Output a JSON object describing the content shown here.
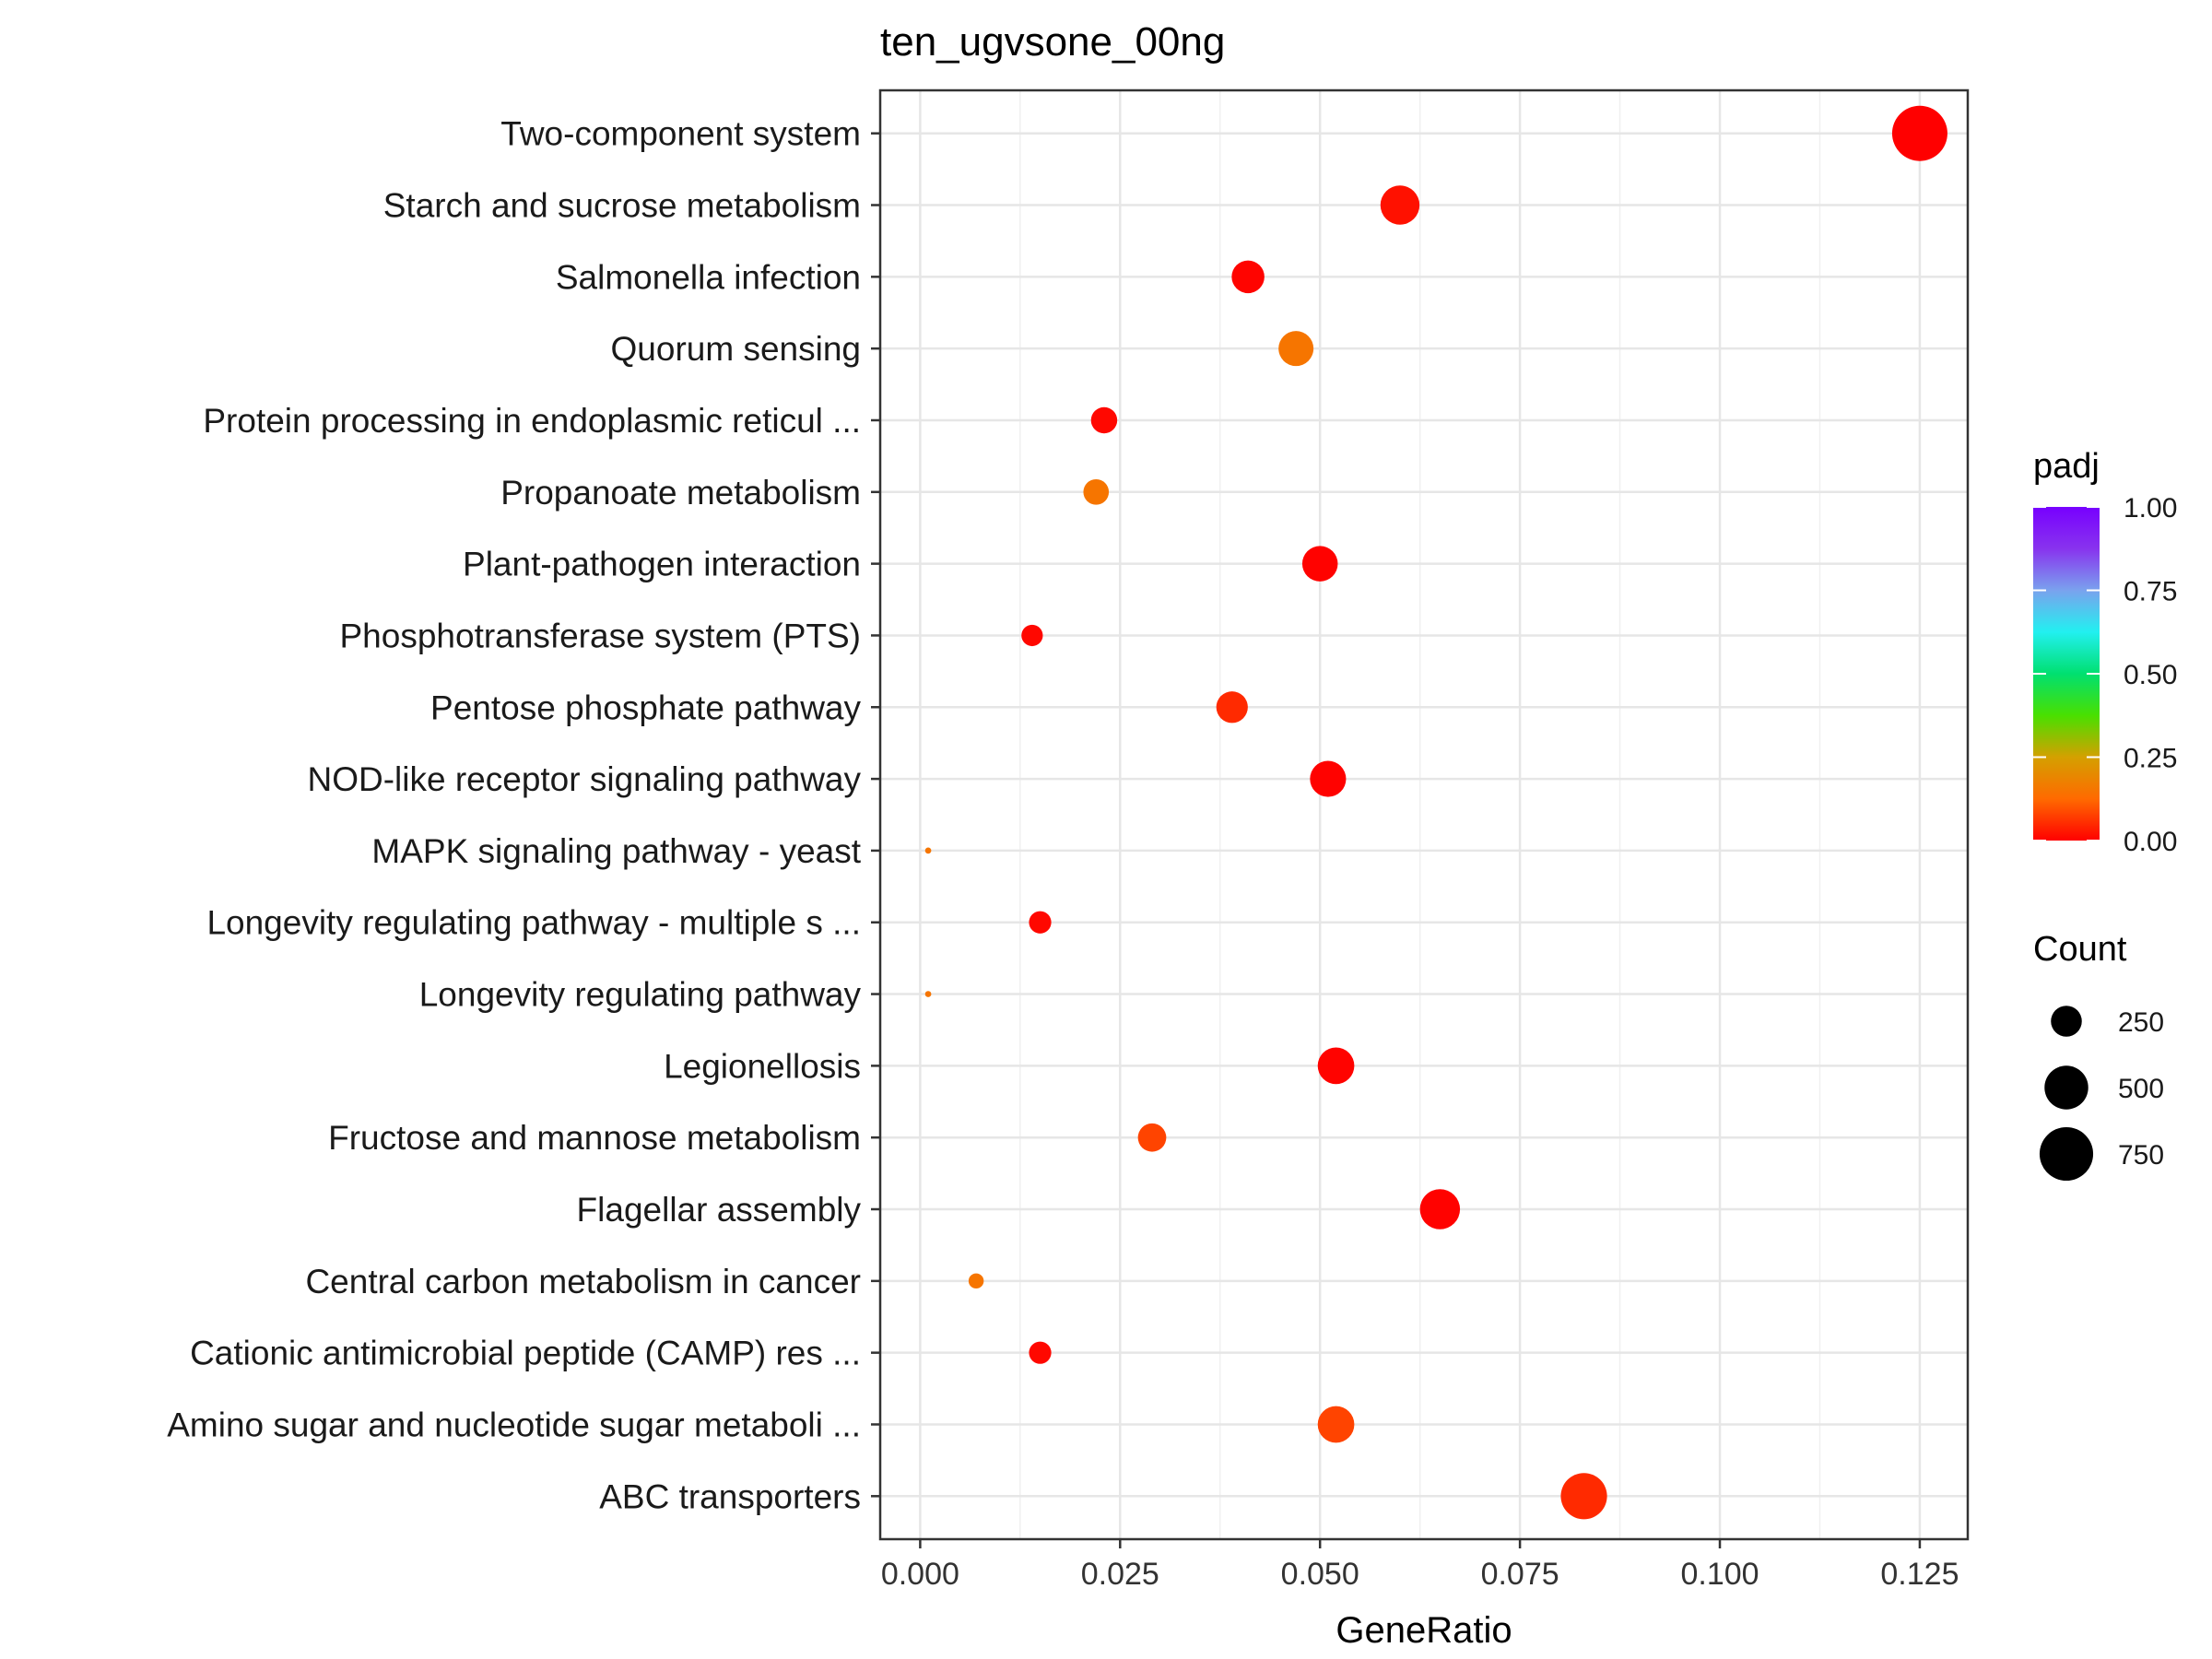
{
  "chart_data": {
    "type": "scatter",
    "title": "ten_ugvsone_00ng",
    "xlabel": "GeneRatio",
    "ylabel": "",
    "xlim": [
      -0.005,
      0.131
    ],
    "xticks": [
      0,
      0.025,
      0.05,
      0.075,
      0.1,
      0.125
    ],
    "xtick_labels": [
      "0.000",
      "0.025",
      "0.050",
      "0.075",
      "0.100",
      "0.125"
    ],
    "grid": true,
    "categories": [
      "Two-component system",
      "Starch and sucrose metabolism",
      "Salmonella infection",
      "Quorum sensing",
      "Protein processing in endoplasmic reticul ...",
      "Propanoate metabolism",
      "Plant-pathogen interaction",
      "Phosphotransferase system (PTS)",
      "Pentose phosphate pathway",
      "NOD-like receptor signaling pathway",
      "MAPK signaling pathway - yeast",
      "Longevity regulating pathway - multiple s ...",
      "Longevity regulating pathway",
      "Legionellosis",
      "Fructose and mannose metabolism",
      "Flagellar assembly",
      "Central carbon metabolism in cancer",
      "Cationic antimicrobial peptide (CAMP) res ...",
      "Amino sugar and nucleotide sugar metaboli ...",
      "ABC transporters"
    ],
    "points": [
      {
        "term": "Two-component system",
        "gene_ratio": 0.125,
        "count": 800,
        "padj": 0.0
      },
      {
        "term": "Starch and sucrose metabolism",
        "gene_ratio": 0.06,
        "count": 400,
        "padj": 0.02
      },
      {
        "term": "Salmonella infection",
        "gene_ratio": 0.041,
        "count": 280,
        "padj": 0.005
      },
      {
        "term": "Quorum sensing",
        "gene_ratio": 0.047,
        "count": 320,
        "padj": 0.15
      },
      {
        "term": "Protein processing in endoplasmic reticul ...",
        "gene_ratio": 0.023,
        "count": 180,
        "padj": 0.01
      },
      {
        "term": "Propanoate metabolism",
        "gene_ratio": 0.022,
        "count": 170,
        "padj": 0.15
      },
      {
        "term": "Plant-pathogen interaction",
        "gene_ratio": 0.05,
        "count": 330,
        "padj": 0.002
      },
      {
        "term": "Phosphotransferase system (PTS)",
        "gene_ratio": 0.014,
        "count": 120,
        "padj": 0.01
      },
      {
        "term": "Pentose phosphate pathway",
        "gene_ratio": 0.039,
        "count": 260,
        "padj": 0.05
      },
      {
        "term": "NOD-like receptor signaling pathway",
        "gene_ratio": 0.051,
        "count": 340,
        "padj": 0.002
      },
      {
        "term": "MAPK signaling pathway - yeast",
        "gene_ratio": 0.001,
        "count": 10,
        "padj": 0.15
      },
      {
        "term": "Longevity regulating pathway - multiple s ...",
        "gene_ratio": 0.015,
        "count": 130,
        "padj": 0.01
      },
      {
        "term": "Longevity regulating pathway",
        "gene_ratio": 0.001,
        "count": 10,
        "padj": 0.15
      },
      {
        "term": "Legionellosis",
        "gene_ratio": 0.052,
        "count": 350,
        "padj": 0.003
      },
      {
        "term": "Fructose and mannose metabolism",
        "gene_ratio": 0.029,
        "count": 210,
        "padj": 0.08
      },
      {
        "term": "Flagellar assembly",
        "gene_ratio": 0.065,
        "count": 420,
        "padj": 0.002
      },
      {
        "term": "Central carbon metabolism in cancer",
        "gene_ratio": 0.007,
        "count": 60,
        "padj": 0.15
      },
      {
        "term": "Cationic antimicrobial peptide (CAMP) res ...",
        "gene_ratio": 0.015,
        "count": 130,
        "padj": 0.01
      },
      {
        "term": "Amino sugar and nucleotide sugar metaboli ...",
        "gene_ratio": 0.052,
        "count": 350,
        "padj": 0.08
      },
      {
        "term": "ABC transporters",
        "gene_ratio": 0.083,
        "count": 560,
        "padj": 0.05
      }
    ],
    "color_legend": {
      "title": "padj",
      "range": [
        0,
        1
      ],
      "ticks": [
        1,
        0.75,
        0.5,
        0.25,
        0
      ],
      "tick_labels": [
        "1.00",
        "0.75",
        "0.50",
        "0.25",
        "0.00"
      ],
      "stops": [
        "#ff0000",
        "#ff6a00",
        "#d4a000",
        "#49e000",
        "#00e070",
        "#22f0f0",
        "#7aa2ee",
        "#8833ee",
        "#7700ff"
      ]
    },
    "size_legend": {
      "title": "Count",
      "values": [
        250,
        500,
        750
      ],
      "labels": [
        "250",
        "500",
        "750"
      ],
      "color": "#000000"
    },
    "legend_position": "right"
  }
}
